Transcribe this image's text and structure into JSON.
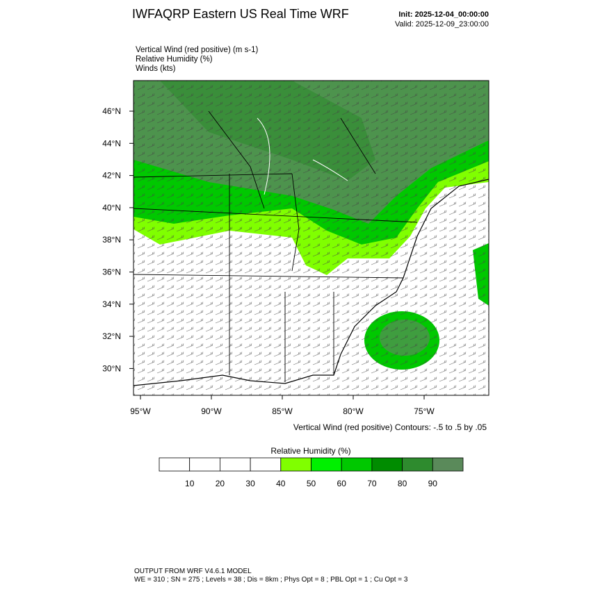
{
  "header": {
    "title": "IWFAQRP Eastern US Real Time WRF",
    "init": "Init: 2025-12-04_00:00:00",
    "valid": "Valid: 2025-12-09_23:00:00"
  },
  "fields": [
    "Vertical Wind (red positive)   (m s-1)",
    "Relative Humidity   (%)",
    "Winds   (kts)"
  ],
  "map": {
    "lat_labels": [
      "46°N",
      "44°N",
      "42°N",
      "40°N",
      "38°N",
      "36°N",
      "34°N",
      "32°N",
      "30°N"
    ],
    "lon_labels": [
      "95°W",
      "90°W",
      "85°W",
      "80°W",
      "75°W"
    ],
    "caption": "Vertical Wind (red positive) Contours: -.5 to .5 by .05"
  },
  "colorbar": {
    "title": "Relative Humidity  (%)",
    "ticks": [
      10,
      20,
      30,
      40,
      50,
      60,
      70,
      80,
      90
    ],
    "colors": [
      "#ffffff",
      "#ffffff",
      "#ffffff",
      "#ffffff",
      "#80ff00",
      "#00f000",
      "#00c800",
      "#008c00",
      "#2e8b2e",
      "#5a8a5a"
    ]
  },
  "footer": {
    "line1": "OUTPUT FROM WRF V4.6.1 MODEL",
    "line2": "WE = 310 ; SN = 275 ; Levels = 38 ; Dis = 8km ; Phys Opt = 8 ; PBL Opt = 1 ; Cu Opt = 3"
  }
}
